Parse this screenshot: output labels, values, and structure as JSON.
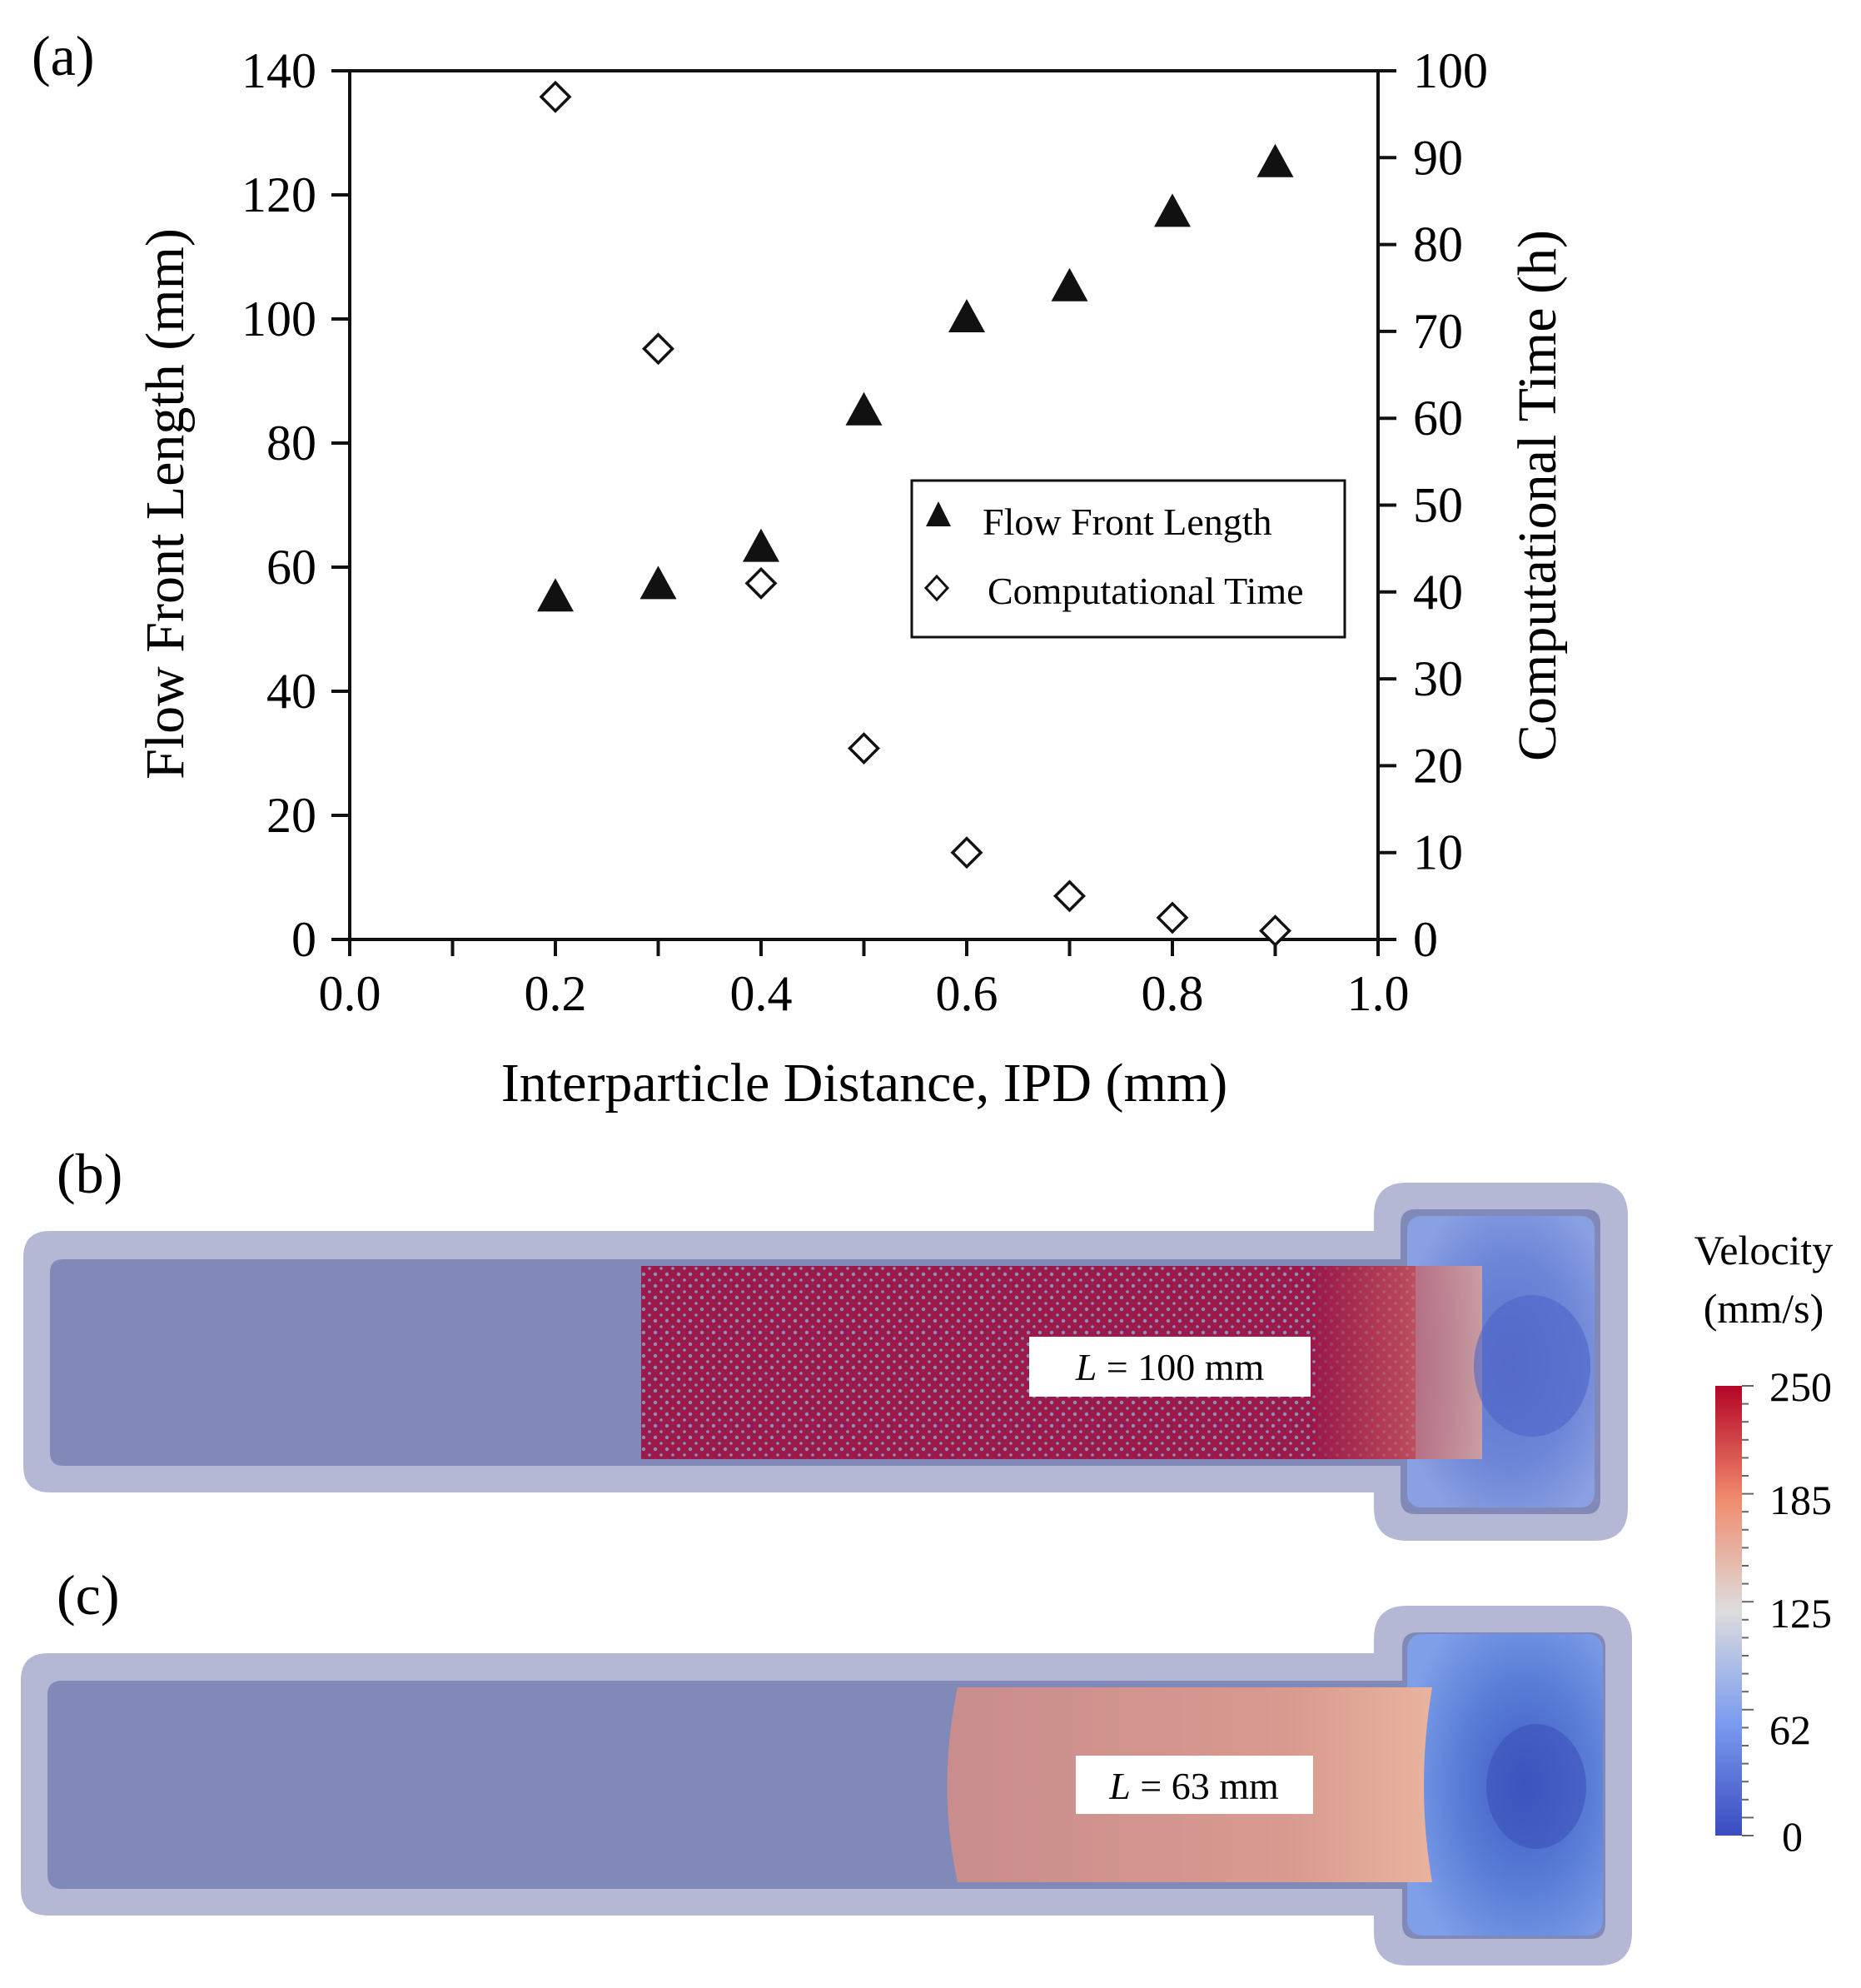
{
  "chart_data": [
    {
      "type": "scatter",
      "panel_label": "(a)",
      "xlabel": "Interparticle Distance, IPD (mm)",
      "ylabel": "Flow Front Length (mm)",
      "y2label": "Computational Time (h)",
      "xlim": [
        0.0,
        1.0
      ],
      "ylim": [
        0,
        140
      ],
      "y2lim": [
        0,
        100
      ],
      "x_tick_labels": [
        "0.0",
        "0.2",
        "0.4",
        "0.6",
        "0.8",
        "1.0"
      ],
      "y_tick_labels": [
        "0",
        "20",
        "40",
        "60",
        "80",
        "100",
        "120",
        "140"
      ],
      "y2_tick_labels": [
        "0",
        "10",
        "20",
        "30",
        "40",
        "50",
        "60",
        "70",
        "80",
        "90",
        "100"
      ],
      "legend_position": "center-right",
      "series": [
        {
          "name": "Flow Front Length",
          "marker": "filled-triangle",
          "axis": "left",
          "x": [
            0.2,
            0.3,
            0.4,
            0.5,
            0.6,
            0.7,
            0.8,
            0.9
          ],
          "values": [
            55,
            57,
            63,
            85,
            100,
            105,
            117,
            125
          ]
        },
        {
          "name": "Computational Time",
          "marker": "open-diamond",
          "axis": "right",
          "x": [
            0.2,
            0.3,
            0.4,
            0.5,
            0.6,
            0.7,
            0.8,
            0.9
          ],
          "values": [
            97,
            68,
            41,
            22,
            10,
            5,
            2.5,
            1
          ]
        }
      ]
    },
    {
      "type": "other",
      "panel_label": "(b)",
      "annotation_italic": "L",
      "annotation_rest": " = 100 mm",
      "flow_front_length_mm": 100
    },
    {
      "type": "other",
      "panel_label": "(c)",
      "annotation_italic": "L",
      "annotation_rest": " = 63 mm",
      "flow_front_length_mm": 63
    }
  ],
  "colorbar": {
    "title_line1": "Velocity",
    "title_line2": "(mm/s)",
    "tick_labels": [
      "250",
      "185",
      "125",
      "62",
      "0"
    ],
    "range": [
      0,
      250
    ],
    "color_low": "#3b4cc0",
    "color_mid": "#dddddd",
    "color_high": "#b40426"
  },
  "colors": {
    "mold_frame": "#b4b8d4",
    "mold_fill": "#8189b9",
    "particles_b": "#9b1a4a",
    "particles_c": "#c98d8d"
  }
}
